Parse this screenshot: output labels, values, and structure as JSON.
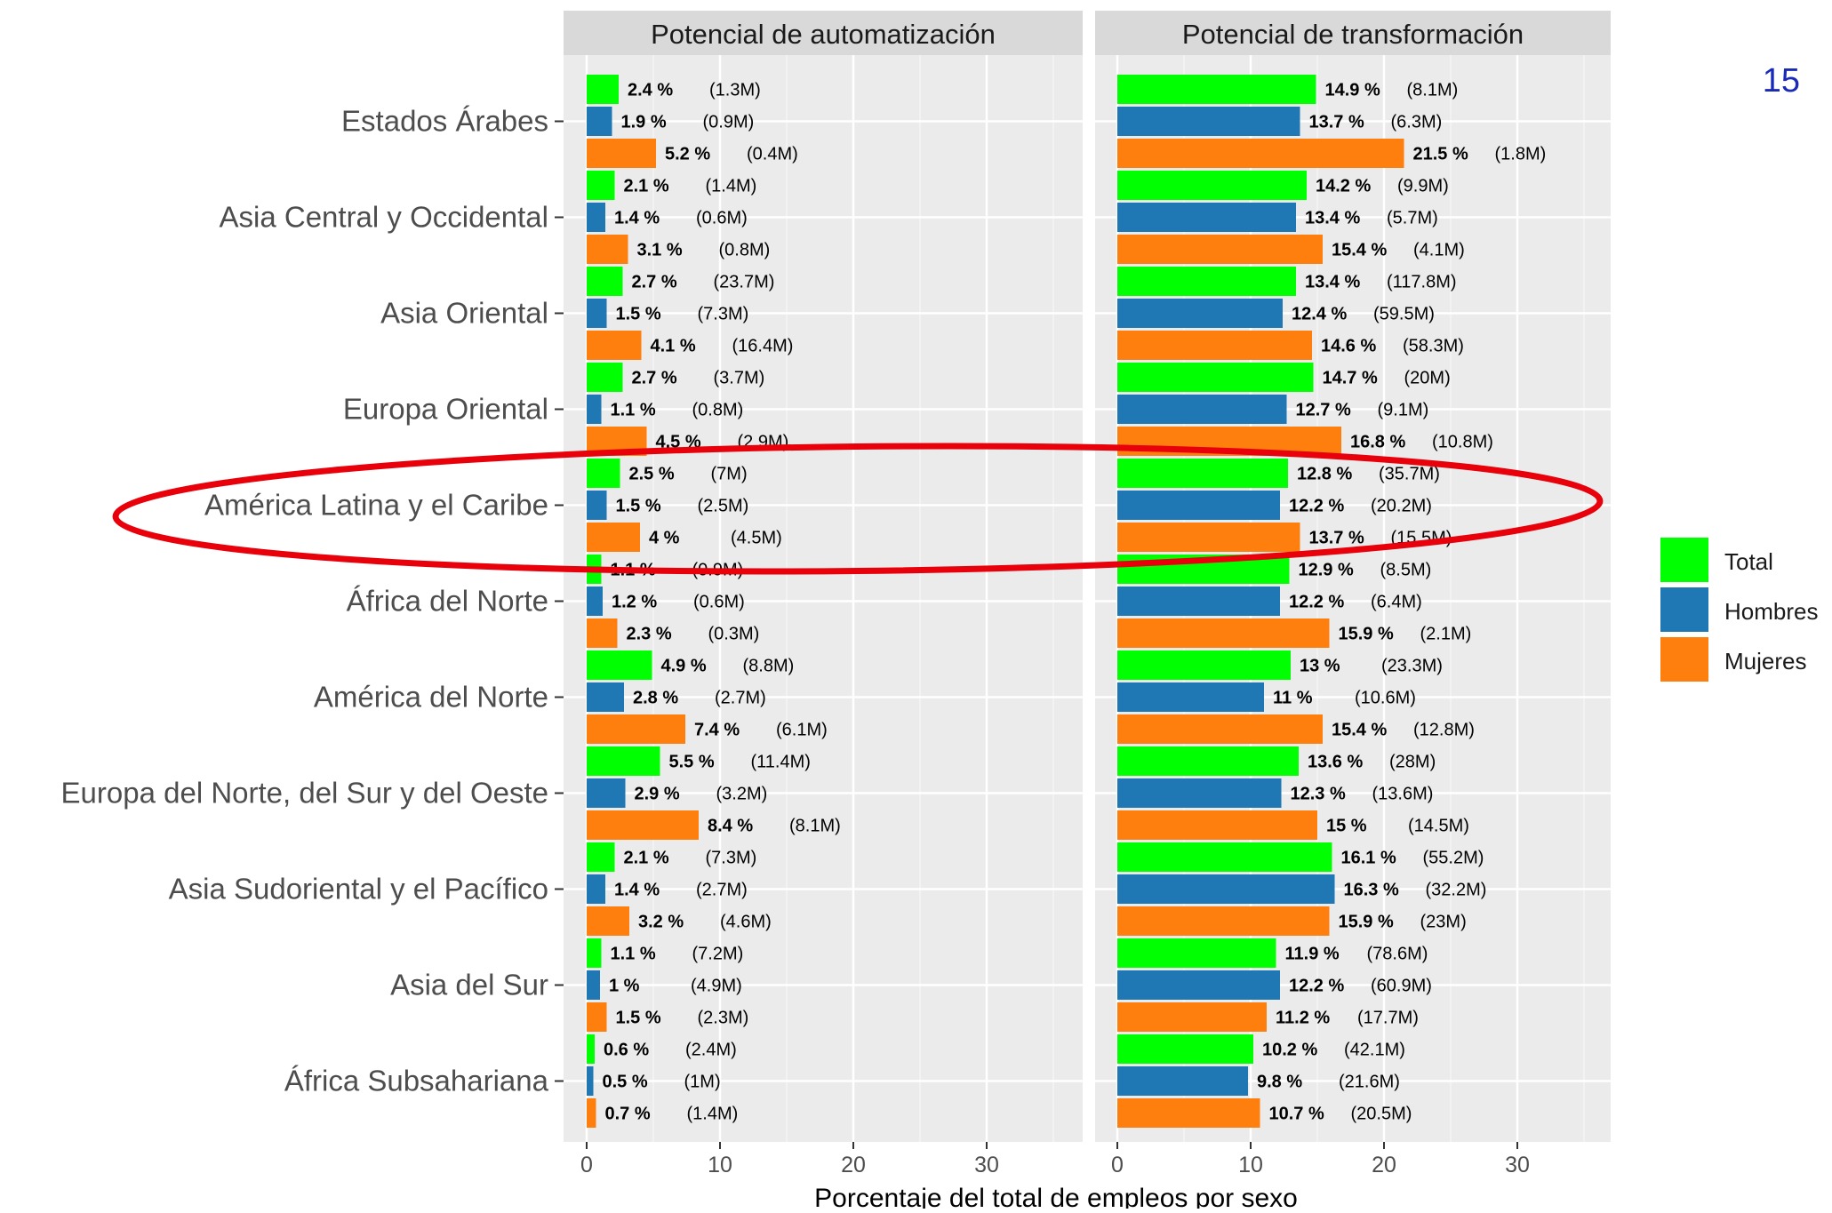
{
  "page_number": "15",
  "chart_data": {
    "type": "bar",
    "orientation": "horizontal",
    "xlabel": "Porcentaje del total de empleos por sexo",
    "xlim": [
      0,
      36
    ],
    "xticks": [
      0,
      10,
      20,
      30
    ],
    "grid": true,
    "legend_position": "right",
    "categories": [
      "Estados Árabes",
      "Asia Central y Occidental",
      "Asia Oriental",
      "Europa Oriental",
      "América Latina y el Caribe",
      "África del Norte",
      "América del Norte",
      "Europa del Norte, del Sur y del Oeste",
      "Asia Sudoriental y el Pacífico",
      "Asia del Sur",
      "África Subsahariana"
    ],
    "legend": [
      {
        "name": "Total",
        "color": "#00FF00"
      },
      {
        "name": "Hombres",
        "color": "#1F77B4"
      },
      {
        "name": "Mujeres",
        "color": "#FF7F0E"
      }
    ],
    "panels": [
      {
        "title": "Potencial de automatización",
        "series": [
          {
            "name": "Total",
            "values": [
              2.4,
              2.1,
              2.7,
              2.7,
              2.5,
              1.1,
              4.9,
              5.5,
              2.1,
              1.1,
              0.6
            ],
            "labels": [
              "2.4 %",
              "2.1 %",
              "2.7 %",
              "2.7 %",
              "2.5 %",
              "1.1 %",
              "4.9 %",
              "5.5 %",
              "2.1 %",
              "1.1 %",
              "0.6 %"
            ],
            "counts": [
              "(1.3M)",
              "(1.4M)",
              "(23.7M)",
              "(3.7M)",
              "(7M)",
              "(0.9M)",
              "(8.8M)",
              "(11.4M)",
              "(7.3M)",
              "(7.2M)",
              "(2.4M)"
            ]
          },
          {
            "name": "Hombres",
            "values": [
              1.9,
              1.4,
              1.5,
              1.1,
              1.5,
              1.2,
              2.8,
              2.9,
              1.4,
              1.0,
              0.5
            ],
            "labels": [
              "1.9 %",
              "1.4 %",
              "1.5 %",
              "1.1 %",
              "1.5 %",
              "1.2 %",
              "2.8 %",
              "2.9 %",
              "1.4 %",
              "1 %",
              "0.5 %"
            ],
            "counts": [
              "(0.9M)",
              "(0.6M)",
              "(7.3M)",
              "(0.8M)",
              "(2.5M)",
              "(0.6M)",
              "(2.7M)",
              "(3.2M)",
              "(2.7M)",
              "(4.9M)",
              "(1M)"
            ]
          },
          {
            "name": "Mujeres",
            "values": [
              5.2,
              3.1,
              4.1,
              4.5,
              4.0,
              2.3,
              7.4,
              8.4,
              3.2,
              1.5,
              0.7
            ],
            "labels": [
              "5.2 %",
              "3.1 %",
              "4.1 %",
              "4.5 %",
              "4 %",
              "2.3 %",
              "7.4 %",
              "8.4 %",
              "3.2 %",
              "1.5 %",
              "0.7 %"
            ],
            "counts": [
              "(0.4M)",
              "(0.8M)",
              "(16.4M)",
              "(2.9M)",
              "(4.5M)",
              "(0.3M)",
              "(6.1M)",
              "(8.1M)",
              "(4.6M)",
              "(2.3M)",
              "(1.4M)"
            ]
          }
        ]
      },
      {
        "title": "Potencial de transformación",
        "series": [
          {
            "name": "Total",
            "values": [
              14.9,
              14.2,
              13.4,
              14.7,
              12.8,
              12.9,
              13.0,
              13.6,
              16.1,
              11.9,
              10.2
            ],
            "labels": [
              "14.9 %",
              "14.2 %",
              "13.4 %",
              "14.7 %",
              "12.8 %",
              "12.9 %",
              "13 %",
              "13.6 %",
              "16.1 %",
              "11.9 %",
              "10.2 %"
            ],
            "counts": [
              "(8.1M)",
              "(9.9M)",
              "(117.8M)",
              "(20M)",
              "(35.7M)",
              "(8.5M)",
              "(23.3M)",
              "(28M)",
              "(55.2M)",
              "(78.6M)",
              "(42.1M)"
            ]
          },
          {
            "name": "Hombres",
            "values": [
              13.7,
              13.4,
              12.4,
              12.7,
              12.2,
              12.2,
              11.0,
              12.3,
              16.3,
              12.2,
              9.8
            ],
            "labels": [
              "13.7 %",
              "13.4 %",
              "12.4 %",
              "12.7 %",
              "12.2 %",
              "12.2 %",
              "11 %",
              "12.3 %",
              "16.3 %",
              "12.2 %",
              "9.8 %"
            ],
            "counts": [
              "(6.3M)",
              "(5.7M)",
              "(59.5M)",
              "(9.1M)",
              "(20.2M)",
              "(6.4M)",
              "(10.6M)",
              "(13.6M)",
              "(32.2M)",
              "(60.9M)",
              "(21.6M)"
            ]
          },
          {
            "name": "Mujeres",
            "values": [
              21.5,
              15.4,
              14.6,
              16.8,
              13.7,
              15.9,
              15.4,
              15.0,
              15.9,
              11.2,
              10.7
            ],
            "labels": [
              "21.5 %",
              "15.4 %",
              "14.6 %",
              "16.8 %",
              "13.7 %",
              "15.9 %",
              "15.4 %",
              "15 %",
              "15.9 %",
              "11.2 %",
              "10.7 %"
            ],
            "counts": [
              "(1.8M)",
              "(4.1M)",
              "(58.3M)",
              "(10.8M)",
              "(15.5M)",
              "(2.1M)",
              "(12.8M)",
              "(14.5M)",
              "(23M)",
              "(17.7M)",
              "(20.5M)"
            ]
          }
        ]
      }
    ],
    "highlight": {
      "category": "América Latina y el Caribe",
      "shape": "ellipse",
      "color": "#E8000B"
    }
  }
}
